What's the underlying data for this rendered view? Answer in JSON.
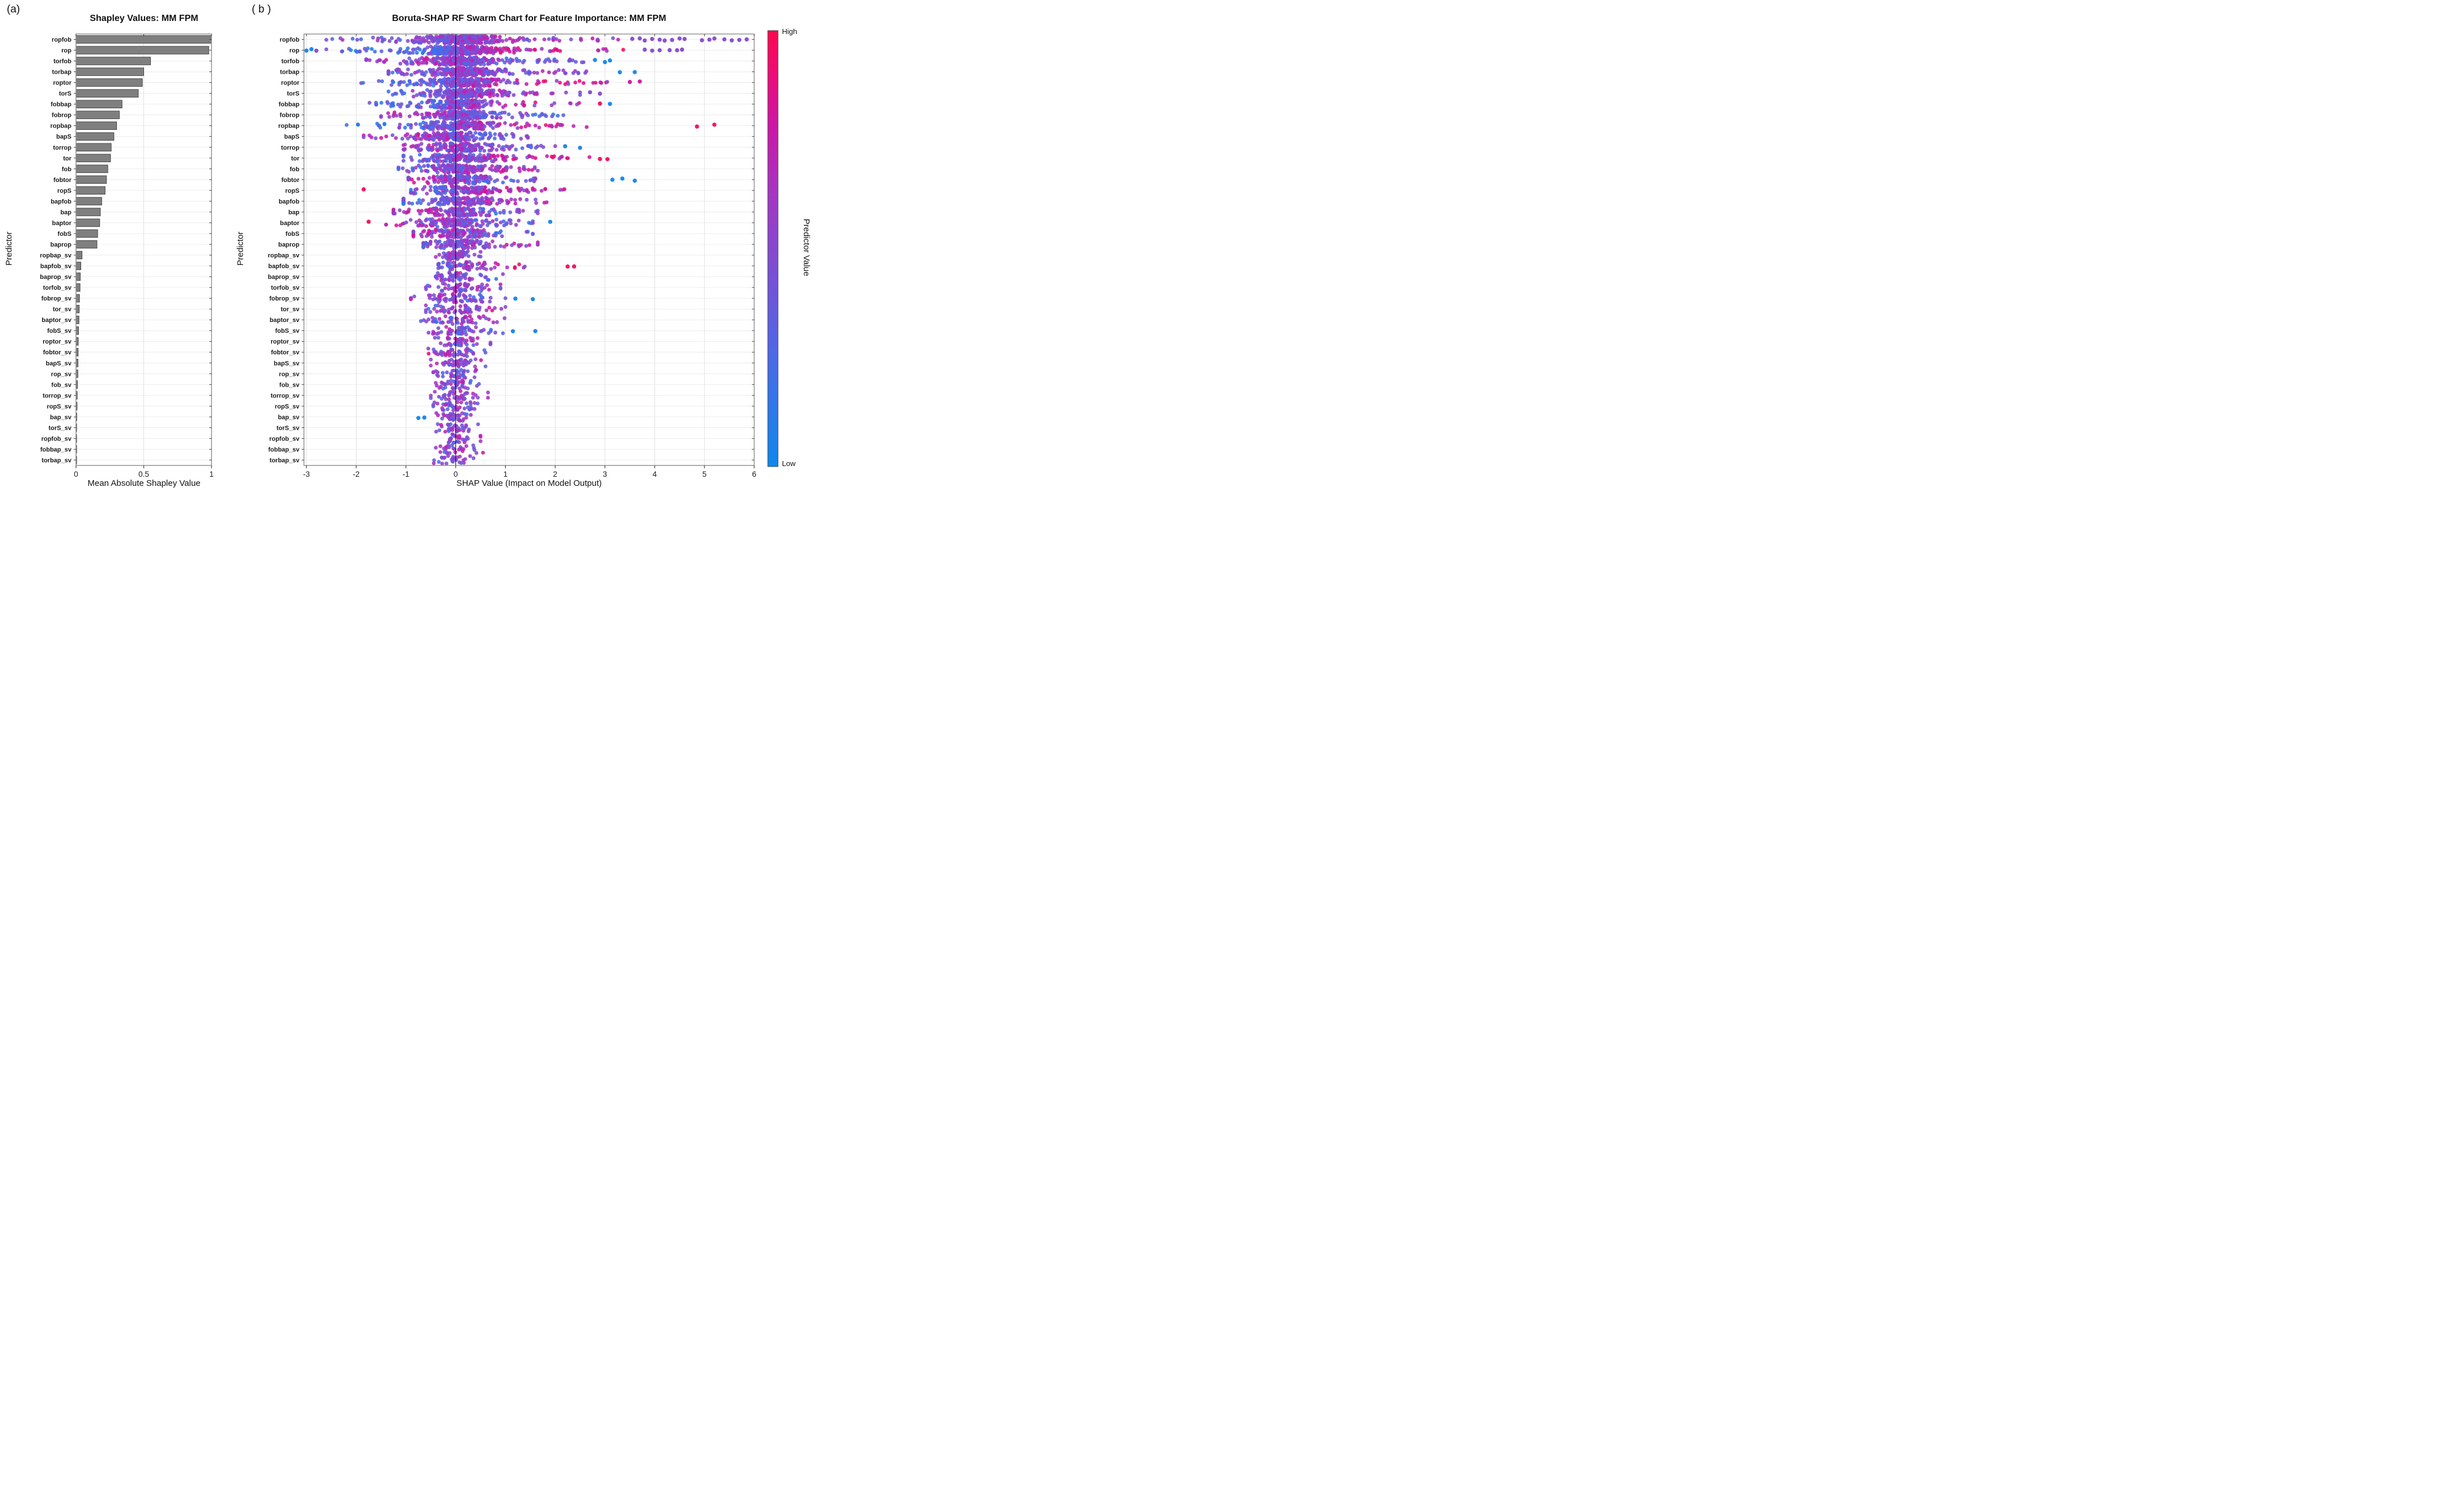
{
  "panel_a": {
    "letter": "(a)",
    "title": "Shapley Values: MM FPM",
    "xlabel": "Mean Absolute Shapley Value",
    "ylabel": "Predictor"
  },
  "panel_b": {
    "letter": "( b )",
    "title": "Boruta-SHAP RF Swarm Chart for Feature Importance: MM FPM",
    "xlabel": "SHAP Value (Impact on Model Output)",
    "ylabel": "Predictor"
  },
  "colorbar": {
    "high_label": "High",
    "low_label": "Low",
    "title": "Predictor Value",
    "stops": [
      [
        "0",
        "#0d88ec"
      ],
      [
        "0.25",
        "#4b6ae8"
      ],
      [
        "0.45",
        "#7b4fd4"
      ],
      [
        "0.62",
        "#a436c4"
      ],
      [
        "0.78",
        "#cb17a6"
      ],
      [
        "0.9",
        "#ed0c78"
      ],
      [
        "1",
        "#fa084e"
      ]
    ]
  },
  "styles": {
    "bar_fill": "#7f7f7f",
    "bar_edge": "#3f3f3f",
    "axis_box": "#8c8c8c",
    "hgrid": "#ececec",
    "vgrid": "#e0e0e0",
    "zero_line": "#111111",
    "tick": "#404040",
    "text": "#1a1a1a"
  },
  "chart_data": [
    {
      "type": "bar",
      "title": "Shapley Values: MM FPM",
      "xlabel": "Mean Absolute Shapley Value",
      "ylabel": "Predictor",
      "xlim": [
        0,
        1
      ],
      "xticks": [
        0,
        0.5,
        1
      ],
      "xtick_labels": [
        "0",
        "0.5",
        "1"
      ],
      "grid": true,
      "categories": [
        "ropfob",
        "rop",
        "torfob",
        "torbap",
        "roptor",
        "torS",
        "fobbap",
        "fobrop",
        "ropbap",
        "bapS",
        "torrop",
        "tor",
        "fob",
        "fobtor",
        "ropS",
        "bapfob",
        "bap",
        "baptor",
        "fobS",
        "baprop",
        "ropbap_sv",
        "bapfob_sv",
        "baprop_sv",
        "torfob_sv",
        "fobrop_sv",
        "tor_sv",
        "baptor_sv",
        "fobS_sv",
        "roptor_sv",
        "fobtor_sv",
        "bapS_sv",
        "rop_sv",
        "fob_sv",
        "torrop_sv",
        "ropS_sv",
        "bap_sv",
        "torS_sv",
        "ropfob_sv",
        "fobbap_sv",
        "torbap_sv"
      ],
      "values": [
        1.0,
        0.98,
        0.55,
        0.5,
        0.49,
        0.46,
        0.34,
        0.32,
        0.3,
        0.28,
        0.26,
        0.255,
        0.235,
        0.225,
        0.215,
        0.19,
        0.18,
        0.175,
        0.16,
        0.155,
        0.045,
        0.036,
        0.032,
        0.03,
        0.026,
        0.024,
        0.022,
        0.019,
        0.017,
        0.016,
        0.015,
        0.014,
        0.011,
        0.009,
        0.008,
        0.006,
        0.004,
        0.003,
        0.003,
        0.002
      ]
    },
    {
      "type": "swarm",
      "title": "Boruta-SHAP RF Swarm Chart for Feature Importance: MM FPM",
      "xlabel": "SHAP Value (Impact on Model Output)",
      "ylabel": "Predictor",
      "xlim": [
        -3.05,
        6.0
      ],
      "xticks": [
        -3,
        -2,
        -1,
        0,
        1,
        2,
        3,
        4,
        5,
        6
      ],
      "xtick_labels": [
        "-3",
        "-2",
        "-1",
        "0",
        "1",
        "2",
        "3",
        "4",
        "5",
        "6"
      ],
      "zero_line": 0,
      "legend": {
        "position": "right-colorbar",
        "high": "High",
        "low": "Low",
        "title": "Predictor Value"
      },
      "features": [
        {
          "name": "ropfob",
          "xmin": -2.65,
          "xmax": 3.45,
          "n": 360,
          "bias": 0.15,
          "outliers": [
            [
              3.55,
              "purple"
            ],
            [
              3.7,
              "purple"
            ],
            [
              3.8,
              "purple"
            ],
            [
              3.95,
              "purple"
            ],
            [
              4.1,
              "purple"
            ],
            [
              4.2,
              "purple"
            ],
            [
              4.35,
              "purple"
            ],
            [
              4.5,
              "purple"
            ],
            [
              4.6,
              "purple"
            ],
            [
              4.95,
              "purple"
            ],
            [
              5.1,
              "purple"
            ],
            [
              5.2,
              "purple"
            ],
            [
              5.4,
              "purple"
            ],
            [
              5.55,
              "purple"
            ],
            [
              5.7,
              "purple"
            ],
            [
              5.85,
              "purple"
            ]
          ]
        },
        {
          "name": "rop",
          "xmin": -2.6,
          "xmax": 3.6,
          "n": 340,
          "bias": 0.55,
          "outliers": [
            [
              -3.0,
              "blue"
            ],
            [
              -2.9,
              "blue"
            ],
            [
              -2.8,
              "purple"
            ],
            [
              3.8,
              "purple"
            ],
            [
              3.95,
              "purple"
            ],
            [
              4.1,
              "purple"
            ],
            [
              4.3,
              "purple"
            ],
            [
              4.45,
              "purple"
            ],
            [
              4.55,
              "purple"
            ]
          ]
        },
        {
          "name": "torfob",
          "xmin": -1.8,
          "xmax": 2.6,
          "n": 280,
          "bias": -0.25,
          "outliers": [
            [
              2.8,
              "blue"
            ],
            [
              3.0,
              "blue"
            ],
            [
              3.1,
              "blue"
            ]
          ]
        },
        {
          "name": "torbap",
          "xmin": -1.35,
          "xmax": 2.95,
          "n": 260,
          "bias": 0.05,
          "outliers": [
            [
              3.3,
              "blue"
            ],
            [
              3.6,
              "blue"
            ]
          ]
        },
        {
          "name": "roptor",
          "xmin": -1.9,
          "xmax": 3.3,
          "n": 250,
          "bias": 0.45,
          "outliers": [
            [
              3.5,
              "magenta"
            ],
            [
              3.7,
              "magenta"
            ]
          ]
        },
        {
          "name": "torS",
          "xmin": -1.35,
          "xmax": 2.5,
          "n": 230,
          "bias": 0.2,
          "outliers": [
            [
              2.7,
              "purple"
            ],
            [
              2.9,
              "purple"
            ]
          ]
        },
        {
          "name": "fobbap",
          "xmin": -1.75,
          "xmax": 2.6,
          "n": 210,
          "bias": 0.4,
          "outliers": [
            [
              2.9,
              "red"
            ],
            [
              3.1,
              "blue"
            ]
          ]
        },
        {
          "name": "fobrop",
          "xmin": -1.5,
          "xmax": 2.25,
          "n": 200,
          "bias": -0.25,
          "outliers": []
        },
        {
          "name": "ropbap",
          "xmin": -2.5,
          "xmax": 3.1,
          "n": 220,
          "bias": 0.5,
          "outliers": [
            [
              4.85,
              "red"
            ],
            [
              5.2,
              "red"
            ]
          ]
        },
        {
          "name": "bapS",
          "xmin": -1.85,
          "xmax": 1.45,
          "n": 190,
          "bias": -0.35,
          "outliers": []
        },
        {
          "name": "torrop",
          "xmin": -1.05,
          "xmax": 2.0,
          "n": 180,
          "bias": -0.25,
          "outliers": [
            [
              2.2,
              "blue"
            ],
            [
              2.5,
              "blue"
            ]
          ]
        },
        {
          "name": "tor",
          "xmin": -1.05,
          "xmax": 2.7,
          "n": 180,
          "bias": 0.4,
          "outliers": [
            [
              2.9,
              "red"
            ],
            [
              3.05,
              "red"
            ]
          ]
        },
        {
          "name": "fob",
          "xmin": -1.15,
          "xmax": 1.65,
          "n": 170,
          "bias": 0.3,
          "outliers": []
        },
        {
          "name": "fobtor",
          "xmin": -0.95,
          "xmax": 1.6,
          "n": 160,
          "bias": -0.25,
          "outliers": [
            [
              3.15,
              "blue"
            ],
            [
              3.35,
              "blue"
            ],
            [
              3.6,
              "blue"
            ]
          ]
        },
        {
          "name": "ropS",
          "xmin": -0.9,
          "xmax": 2.25,
          "n": 160,
          "bias": 0.4,
          "outliers": [
            [
              -1.85,
              "red"
            ]
          ]
        },
        {
          "name": "bapfob",
          "xmin": -1.05,
          "xmax": 2.2,
          "n": 155,
          "bias": 0.4,
          "outliers": []
        },
        {
          "name": "bap",
          "xmin": -1.25,
          "xmax": 1.65,
          "n": 150,
          "bias": -0.35,
          "outliers": []
        },
        {
          "name": "baptor",
          "xmin": -1.4,
          "xmax": 1.55,
          "n": 140,
          "bias": -0.25,
          "outliers": [
            [
              -1.75,
              "red"
            ],
            [
              1.9,
              "blue"
            ]
          ]
        },
        {
          "name": "fobS",
          "xmin": -0.85,
          "xmax": 1.55,
          "n": 140,
          "bias": -0.3,
          "outliers": []
        },
        {
          "name": "baprop",
          "xmin": -0.65,
          "xmax": 1.65,
          "n": 130,
          "bias": 0.4,
          "outliers": []
        },
        {
          "name": "ropbap_sv",
          "xmin": -0.4,
          "xmax": 0.5,
          "n": 60,
          "bias": -0.5,
          "outliers": []
        },
        {
          "name": "bapfob_sv",
          "xmin": -0.35,
          "xmax": 1.45,
          "n": 70,
          "bias": 0.65,
          "outliers": [
            [
              2.25,
              "red"
            ],
            [
              2.38,
              "red"
            ]
          ]
        },
        {
          "name": "baprop_sv",
          "xmin": -0.4,
          "xmax": 0.95,
          "n": 55,
          "bias": -0.4,
          "outliers": []
        },
        {
          "name": "torfob_sv",
          "xmin": -0.6,
          "xmax": 0.9,
          "n": 60,
          "bias": 0.0,
          "outliers": []
        },
        {
          "name": "fobrop_sv",
          "xmin": -0.9,
          "xmax": 1.0,
          "n": 70,
          "bias": -0.55,
          "outliers": [
            [
              1.2,
              "blue"
            ],
            [
              1.55,
              "blue"
            ]
          ]
        },
        {
          "name": "tor_sv",
          "xmin": -0.6,
          "xmax": 1.0,
          "n": 55,
          "bias": 0.45,
          "outliers": []
        },
        {
          "name": "baptor_sv",
          "xmin": -0.7,
          "xmax": 1.05,
          "n": 50,
          "bias": 0.45,
          "outliers": []
        },
        {
          "name": "fobS_sv",
          "xmin": -0.55,
          "xmax": 0.95,
          "n": 55,
          "bias": -0.55,
          "outliers": [
            [
              1.15,
              "blue"
            ],
            [
              1.6,
              "blue"
            ]
          ]
        },
        {
          "name": "roptor_sv",
          "xmin": -0.6,
          "xmax": 0.7,
          "n": 45,
          "bias": 0.0,
          "outliers": []
        },
        {
          "name": "fobtor_sv",
          "xmin": -0.55,
          "xmax": 0.6,
          "n": 45,
          "bias": -0.45,
          "outliers": []
        },
        {
          "name": "bapS_sv",
          "xmin": -0.5,
          "xmax": 0.6,
          "n": 45,
          "bias": 0.0,
          "outliers": []
        },
        {
          "name": "rop_sv",
          "xmin": -0.45,
          "xmax": 0.55,
          "n": 40,
          "bias": 0.0,
          "outliers": []
        },
        {
          "name": "fob_sv",
          "xmin": -0.4,
          "xmax": 0.5,
          "n": 40,
          "bias": 0.0,
          "outliers": []
        },
        {
          "name": "torrop_sv",
          "xmin": -0.5,
          "xmax": 0.65,
          "n": 40,
          "bias": 0.3,
          "outliers": []
        },
        {
          "name": "ropS_sv",
          "xmin": -0.45,
          "xmax": 0.55,
          "n": 38,
          "bias": 0.0,
          "outliers": []
        },
        {
          "name": "bap_sv",
          "xmin": -0.45,
          "xmax": 0.4,
          "n": 35,
          "bias": -0.3,
          "outliers": [
            [
              -0.75,
              "blue"
            ],
            [
              -0.63,
              "blue"
            ]
          ]
        },
        {
          "name": "torS_sv",
          "xmin": -0.4,
          "xmax": 0.45,
          "n": 32,
          "bias": 0.0,
          "outliers": []
        },
        {
          "name": "ropfob_sv",
          "xmin": -0.35,
          "xmax": 0.5,
          "n": 30,
          "bias": 0.1,
          "outliers": []
        },
        {
          "name": "fobbap_sv",
          "xmin": -0.4,
          "xmax": 0.55,
          "n": 30,
          "bias": 0.0,
          "outliers": []
        },
        {
          "name": "torbap_sv",
          "xmin": -0.45,
          "xmax": 0.4,
          "n": 28,
          "bias": 0.2,
          "outliers": []
        }
      ]
    }
  ]
}
